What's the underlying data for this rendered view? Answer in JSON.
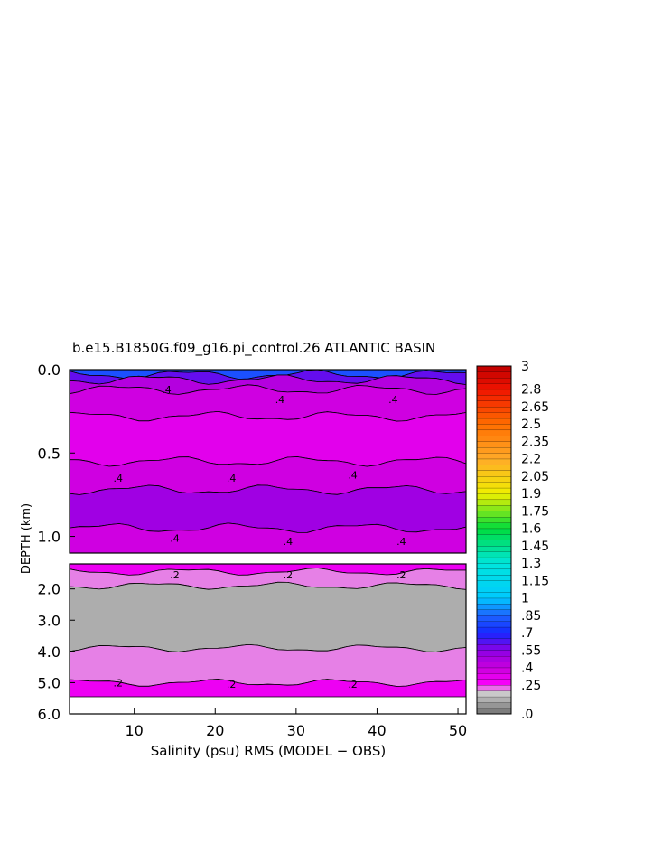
{
  "chart_data": {
    "type": "heatmap",
    "title": "b.e15.B1850G.f09_g16.pi_control.26 ATLANTIC BASIN",
    "xlabel": "Salinity (psu) RMS (MODEL − OBS)",
    "ylabel": "DEPTH (km)",
    "xlim": [
      2,
      51
    ],
    "x_ticks": [
      "10",
      "20",
      "30",
      "40",
      "50"
    ],
    "upper_panel": {
      "ylim": [
        0.0,
        1.1
      ],
      "y_ticks": [
        "0.0",
        "0.5",
        "1.0"
      ],
      "layers": [
        {
          "top": 0.0,
          "bottom": 0.03,
          "level": 0.8
        },
        {
          "top": 0.03,
          "bottom": 0.06,
          "level": 0.6
        },
        {
          "top": 0.06,
          "bottom": 0.12,
          "level": 0.45
        },
        {
          "top": 0.12,
          "bottom": 0.28,
          "level": 0.38
        },
        {
          "top": 0.28,
          "bottom": 0.55,
          "level": 0.33
        },
        {
          "top": 0.55,
          "bottom": 0.72,
          "level": 0.38
        },
        {
          "top": 0.72,
          "bottom": 0.95,
          "level": 0.5
        },
        {
          "top": 0.95,
          "bottom": 1.1,
          "level": 0.38
        }
      ],
      "contour_labels": [
        {
          "x": 14,
          "y": 0.12,
          "text": ".4"
        },
        {
          "x": 28,
          "y": 0.18,
          "text": ".4"
        },
        {
          "x": 42,
          "y": 0.18,
          "text": ".4"
        },
        {
          "x": 8,
          "y": 0.65,
          "text": ".4"
        },
        {
          "x": 22,
          "y": 0.65,
          "text": ".4"
        },
        {
          "x": 37,
          "y": 0.63,
          "text": ".4"
        },
        {
          "x": 15,
          "y": 1.01,
          "text": ".4"
        },
        {
          "x": 29,
          "y": 1.03,
          "text": ".4"
        },
        {
          "x": 43,
          "y": 1.03,
          "text": ".4"
        }
      ]
    },
    "lower_panel": {
      "ylim": [
        1.2,
        6.0
      ],
      "y_ticks": [
        "2.0",
        "3.0",
        "4.0",
        "5.0",
        "6.0"
      ],
      "layers": [
        {
          "top": 1.2,
          "bottom": 1.45,
          "level": 0.3
        },
        {
          "top": 1.45,
          "bottom": 1.9,
          "level": 0.22
        },
        {
          "top": 1.9,
          "bottom": 3.9,
          "level": 0.12
        },
        {
          "top": 3.9,
          "bottom": 5.0,
          "level": 0.22
        },
        {
          "top": 5.0,
          "bottom": 5.45,
          "level": 0.3
        }
      ],
      "contour_labels": [
        {
          "x": 15,
          "y": 1.55,
          "text": ".2"
        },
        {
          "x": 29,
          "y": 1.55,
          "text": ".2"
        },
        {
          "x": 43,
          "y": 1.55,
          "text": ".2"
        },
        {
          "x": 8,
          "y": 5.0,
          "text": ".2"
        },
        {
          "x": 22,
          "y": 5.05,
          "text": ".2"
        },
        {
          "x": 37,
          "y": 5.05,
          "text": ".2"
        }
      ]
    },
    "colorbar": {
      "min": 0,
      "max": 3,
      "step": 0.05,
      "tick_labels": [
        "3",
        "2.8",
        "2.65",
        "2.5",
        "2.35",
        "2.2",
        "2.05",
        "1.9",
        "1.75",
        "1.6",
        "1.45",
        "1.3",
        "1.15",
        "1",
        ".85",
        ".7",
        ".55",
        ".4",
        ".25",
        ".0"
      ]
    }
  }
}
